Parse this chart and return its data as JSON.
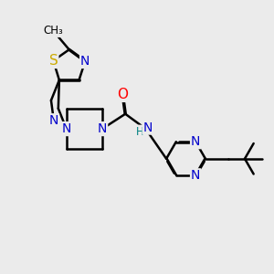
{
  "background_color": "#ebebeb",
  "atom_colors": {
    "C": "#000000",
    "N": "#0000cc",
    "O": "#ff0000",
    "S": "#ccaa00",
    "H": "#008080"
  },
  "bond_color": "#000000",
  "bond_width": 1.8,
  "font_size": 10
}
